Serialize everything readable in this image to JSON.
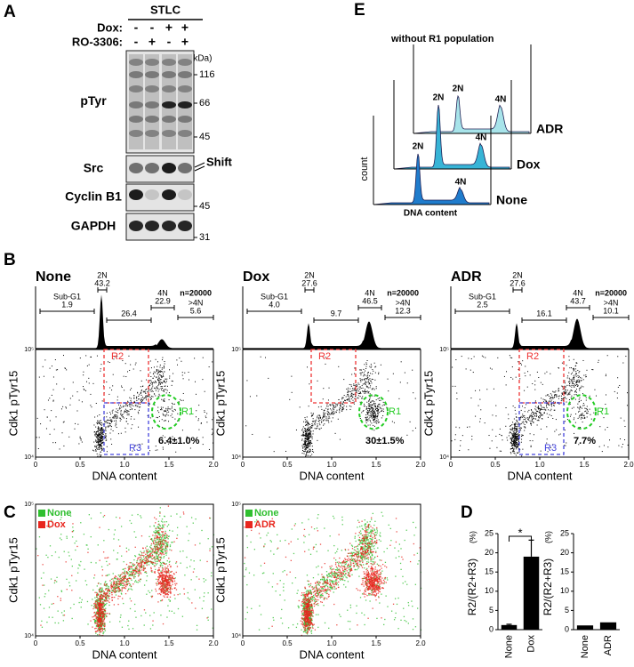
{
  "panel_labels": [
    "A",
    "B",
    "C",
    "D",
    "E"
  ],
  "A": {
    "treatment": "STLC",
    "conditions": [
      {
        "label": "Dox:",
        "signs": [
          "-",
          "-",
          "+",
          "+"
        ]
      },
      {
        "label": "RO-3306:",
        "signs": [
          "-",
          "+",
          "-",
          "+"
        ]
      }
    ],
    "unit": "(kDa)",
    "blots": [
      {
        "label": "pTyr",
        "markers": [
          "116",
          "66",
          "45"
        ]
      },
      {
        "label": "Src",
        "markers": []
      },
      {
        "label": "Cyclin B1",
        "markers": [
          "45"
        ]
      },
      {
        "label": "GAPDH",
        "markers": [
          "31"
        ]
      }
    ],
    "annotation": "Shift"
  },
  "B": {
    "x_label": "DNA content",
    "y_label": "Cdk1 pTyr15",
    "x_tick_labels": [
      "0",
      "0.5",
      "1.0",
      "1.5",
      "2.0"
    ],
    "y_tick_labels": [
      "10⁵",
      "10⁴"
    ],
    "plots": [
      {
        "title": "None",
        "n": "n=20000",
        "hist_labels": [
          {
            "label": "Sub-G1",
            "value": "1.9"
          },
          {
            "label": "2N",
            "value": "43.2"
          },
          {
            "value": "26.4"
          },
          {
            "label": "4N",
            "value": "22.9"
          },
          {
            "label": ">4N",
            "value": "5.6"
          }
        ],
        "gates": [
          "R2",
          "R3",
          "R1"
        ],
        "r1_percent": "6.4±1.0%"
      },
      {
        "title": "Dox",
        "n": "n=20000",
        "hist_labels": [
          {
            "label": "Sub-G1",
            "value": "4.0"
          },
          {
            "label": "2N",
            "value": "27.6"
          },
          {
            "value": "9.7"
          },
          {
            "label": "4N",
            "value": "46.5"
          },
          {
            "label": ">4N",
            "value": "12.3"
          }
        ],
        "gates": [
          "R2",
          "R1"
        ],
        "r1_percent": "30±1.5%"
      },
      {
        "title": "ADR",
        "n": "n=20000",
        "hist_labels": [
          {
            "label": "Sub-G1",
            "value": "2.5"
          },
          {
            "label": "2N",
            "value": "27.6"
          },
          {
            "value": "16.1"
          },
          {
            "label": "4N",
            "value": "43.7"
          },
          {
            "label": ">4N",
            "value": "10.1"
          }
        ],
        "gates": [
          "R2",
          "R3",
          "R1"
        ],
        "r1_percent": "7.7%"
      }
    ]
  },
  "C": {
    "x_label": "DNA content",
    "y_label": "Cdk1 pTyr15",
    "x_tick_labels": [
      "0",
      "0.5",
      "1.0",
      "1.5",
      "2.0"
    ],
    "y_tick_labels": [
      "10⁵",
      "10⁴"
    ],
    "plots": [
      {
        "legend": [
          {
            "name": "None",
            "color": "#2fbf2f"
          },
          {
            "name": "Dox",
            "color": "#e8261e"
          }
        ]
      },
      {
        "legend": [
          {
            "name": "None",
            "color": "#2fbf2f"
          },
          {
            "name": "ADR",
            "color": "#e8261e"
          }
        ]
      }
    ]
  },
  "chart_data": [
    {
      "type": "bar",
      "y_label": "R2/(R2+R3)",
      "unit": "(%)",
      "categories": [
        "None",
        "Dox"
      ],
      "values": [
        1.2,
        19
      ],
      "errors": [
        0.2,
        4.3
      ],
      "color": "#000000",
      "ylim": [
        0,
        25
      ],
      "yticks": [
        0,
        5,
        10,
        15,
        20,
        25
      ],
      "annotation": "*"
    },
    {
      "type": "bar",
      "y_label": "R2/(R2+R3)",
      "unit": "(%)",
      "categories": [
        "None",
        "ADR"
      ],
      "values": [
        1.1,
        1.9
      ],
      "color": "#000000",
      "ylim": [
        0,
        25
      ],
      "yticks": [
        0,
        5,
        10,
        15,
        20,
        25
      ]
    }
  ],
  "E": {
    "title": "without R1 population",
    "y_label": "count",
    "x_label": "DNA content",
    "histograms": [
      {
        "name": "ADR",
        "color": "#a8e4ea",
        "peaks": [
          "2N",
          "4N"
        ]
      },
      {
        "name": "Dox",
        "color": "#37b4d6",
        "peaks": [
          "2N",
          "4N"
        ]
      },
      {
        "name": "None",
        "color": "#1f7ccc",
        "peaks": [
          "2N",
          "4N"
        ]
      }
    ]
  }
}
